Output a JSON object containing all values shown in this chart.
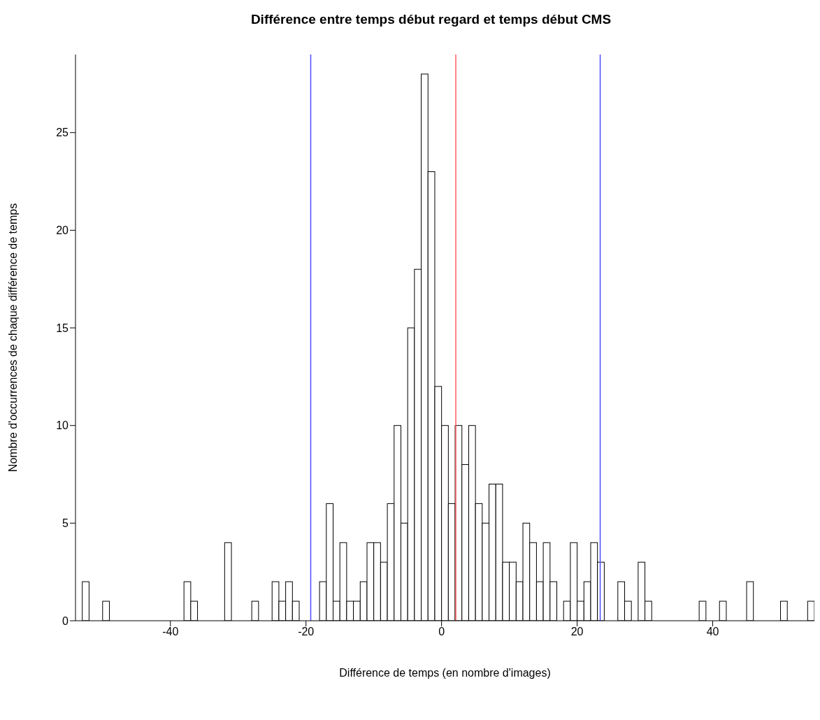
{
  "chart_data": {
    "type": "histogram",
    "title": "Différence entre temps début regard et temps début CMS",
    "xlabel": "Différence de temps (en nombre d'images)",
    "ylabel": "Nombre d'occurrences de chaque différence de temps",
    "bins": [
      -53,
      -52,
      -51,
      -50,
      -49,
      -48,
      -47,
      -46,
      -45,
      -44,
      -43,
      -42,
      -41,
      -40,
      -39,
      -38,
      -37,
      -36,
      -35,
      -34,
      -33,
      -32,
      -31,
      -30,
      -29,
      -28,
      -27,
      -26,
      -25,
      -24,
      -23,
      -22,
      -21,
      -20,
      -19,
      -18,
      -17,
      -16,
      -15,
      -14,
      -13,
      -12,
      -11,
      -10,
      -9,
      -8,
      -7,
      -6,
      -5,
      -4,
      -3,
      -2,
      -1,
      0,
      1,
      2,
      3,
      4,
      5,
      6,
      7,
      8,
      9,
      10,
      11,
      12,
      13,
      14,
      15,
      16,
      17,
      18,
      19,
      20,
      21,
      22,
      23,
      24,
      25,
      26,
      27,
      28,
      29,
      30,
      31,
      32,
      33,
      34,
      35,
      36,
      37,
      38,
      39,
      40,
      41,
      42,
      43,
      44,
      45,
      46,
      47,
      48,
      49,
      50,
      51,
      52,
      53,
      54,
      55
    ],
    "values": [
      2,
      0,
      0,
      1,
      0,
      0,
      0,
      0,
      0,
      0,
      0,
      0,
      0,
      0,
      0,
      2,
      1,
      0,
      0,
      0,
      0,
      4,
      0,
      0,
      0,
      1,
      0,
      0,
      2,
      1,
      2,
      1,
      0,
      0,
      0,
      2,
      6,
      1,
      4,
      1,
      1,
      2,
      4,
      4,
      3,
      6,
      10,
      5,
      15,
      18,
      28,
      23,
      12,
      10,
      6,
      10,
      8,
      10,
      6,
      5,
      7,
      7,
      3,
      3,
      2,
      5,
      4,
      2,
      4,
      2,
      0,
      1,
      4,
      1,
      2,
      4,
      3,
      0,
      0,
      2,
      1,
      0,
      3,
      1,
      0,
      0,
      0,
      0,
      0,
      0,
      0,
      1,
      0,
      0,
      1,
      0,
      0,
      0,
      2,
      0,
      0,
      0,
      0,
      1,
      0,
      0,
      0,
      1
    ],
    "color": "#ffffff",
    "xlim": [
      -54,
      55
    ],
    "xticks": [
      -40,
      -20,
      0,
      20,
      40
    ],
    "ylim": [
      0,
      29
    ],
    "yticks": [
      0,
      5,
      10,
      15,
      20,
      25
    ],
    "ref_lines": [
      {
        "axis": "x",
        "value": -19.3,
        "color": "#4d4dff"
      },
      {
        "axis": "x",
        "value": 2.1,
        "color": "#ff5c5c"
      },
      {
        "axis": "x",
        "value": 23.4,
        "color": "#4d4dff"
      }
    ]
  }
}
